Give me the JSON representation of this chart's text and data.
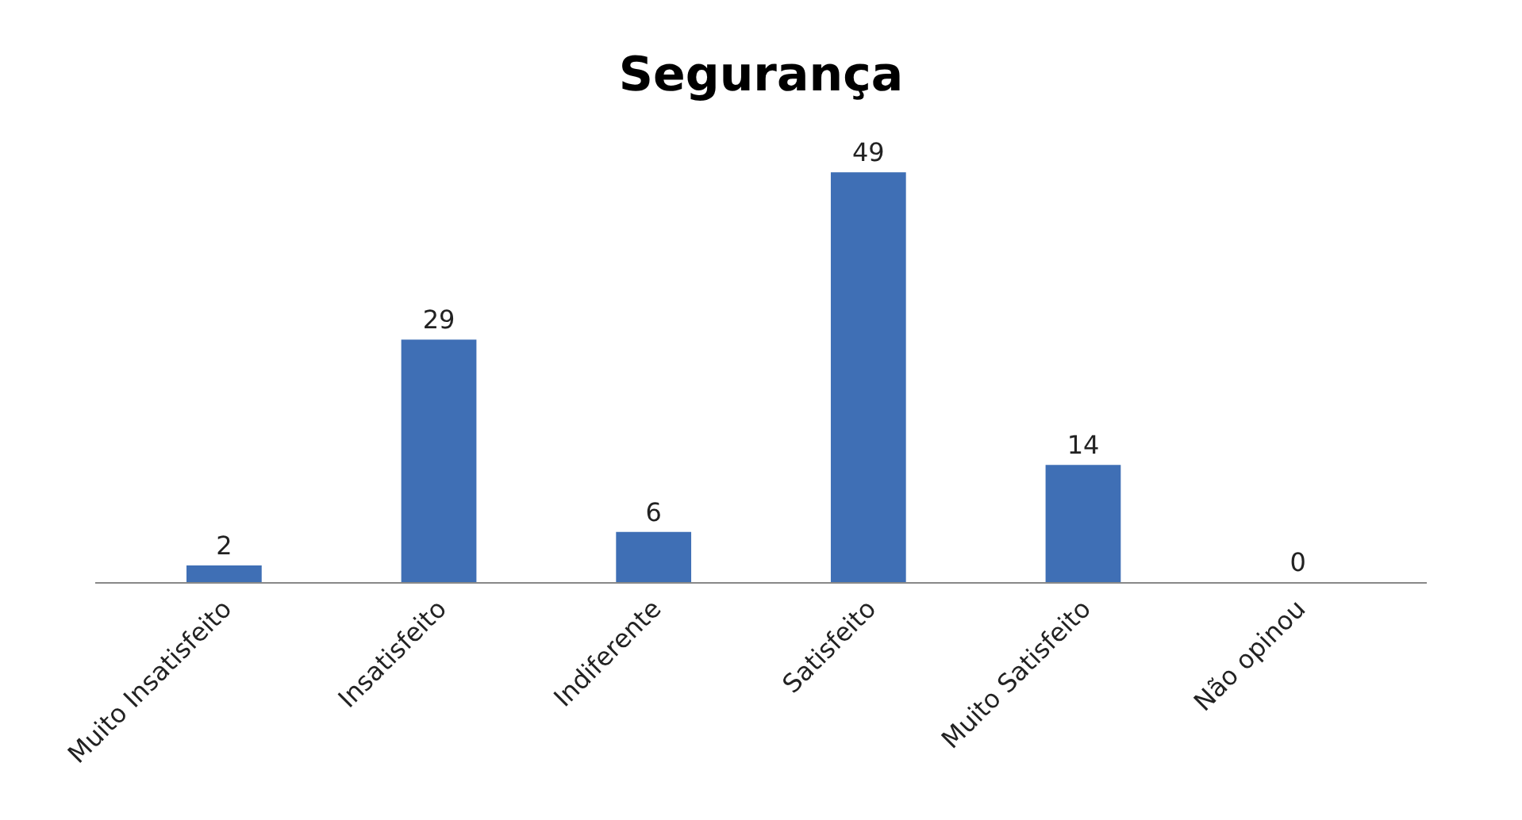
{
  "chart_data": {
    "type": "bar",
    "title": "Segurança",
    "categories": [
      "Muito Insatisfeito",
      "Insatisfeito",
      "Indiferente",
      "Satisfeito",
      "Muito Satisfeito",
      "Não opinou"
    ],
    "values": [
      2,
      29,
      6,
      49,
      14,
      0
    ],
    "color": "#3f6fb5",
    "data_labels": true
  }
}
